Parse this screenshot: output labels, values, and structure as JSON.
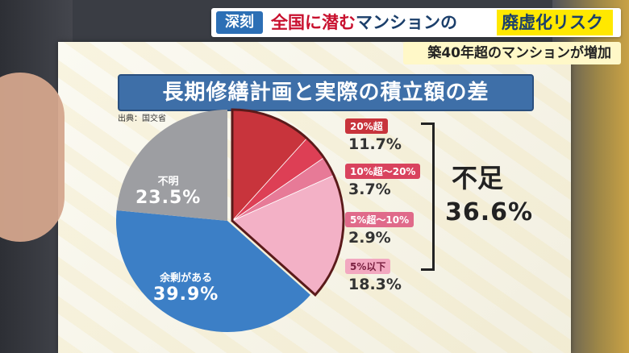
{
  "headline": {
    "tag": "深刻",
    "main_prefix": "全国に潜む",
    "main_middle": "マンションの",
    "main_highlight": "廃虚化リスク",
    "sub": "築40年超のマンションが増加"
  },
  "board": {
    "title": "長期修繕計画と実際の積立額の差",
    "source": "出典：国交省"
  },
  "chart_data": {
    "type": "pie",
    "title": "長期修繕計画と実際の積立額の差",
    "slices": [
      {
        "label": "余剰がある",
        "value": 39.9,
        "display": "39.9%",
        "color": "#3c7fc6"
      },
      {
        "label": "不明",
        "value": 23.5,
        "display": "23.5%",
        "color": "#9d9ea2"
      },
      {
        "label": "20%超",
        "value": 11.7,
        "display": "11.7%",
        "color": "#c8343c"
      },
      {
        "label": "10%超〜20%",
        "value": 3.7,
        "display": "3.7%",
        "color": "#dd3f55"
      },
      {
        "label": "5%超〜10%",
        "value": 2.9,
        "display": "2.9%",
        "color": "#e77a97"
      },
      {
        "label": "5%以下",
        "value": 18.3,
        "display": "18.3%",
        "color": "#f3b1c6"
      }
    ],
    "group": {
      "label": "不足",
      "value": 36.6,
      "display": "36.6%"
    }
  }
}
